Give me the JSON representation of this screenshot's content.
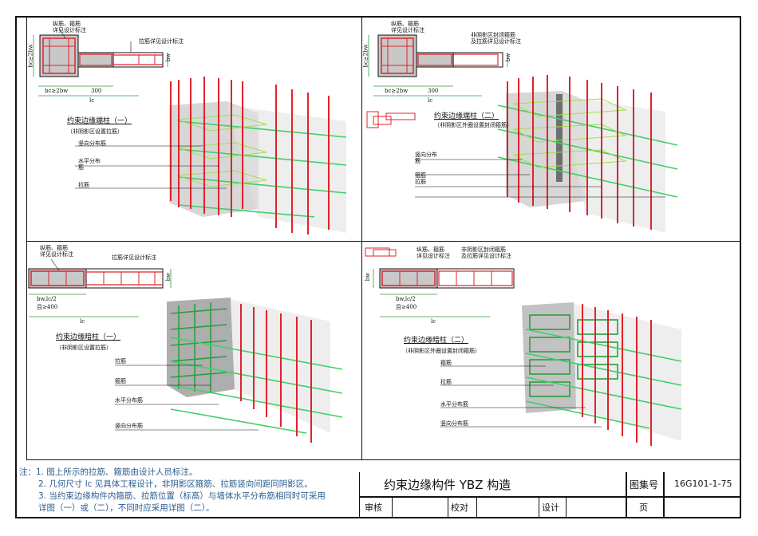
{
  "panels": {
    "top_left": {
      "labels": {
        "stirrup_note": "纵筋、箍筋\n详见设计标注",
        "tie_note": "拉筋详见设计标注",
        "bc": "bc≥2bw",
        "bw": "bw",
        "bc_dim": "bc≥2bw",
        "d300": "300",
        "lc": "lc"
      },
      "title": "约束边缘端柱（一）",
      "subtitle": "（非阴影区设置拉筋）",
      "callouts": [
        "竖向分布筋",
        "水平分布\n筋",
        "拉筋"
      ]
    },
    "top_right": {
      "labels": {
        "stirrup_note": "纵筋、箍筋\n详见设计标注",
        "tie_note": "非阴影区封闭箍筋\n及拉筋详见设计标注",
        "bc": "bc≥2bw",
        "bw": "bw",
        "bc_dim": "bc≥2bw",
        "d300": "300",
        "lc": "lc"
      },
      "title": "约束边缘端柱（二）",
      "subtitle": "（非阴影区外圈设置封闭箍筋）",
      "callouts": [
        "竖向分布\n筋",
        "箍筋\n拉筋"
      ]
    },
    "bottom_left": {
      "labels": {
        "stirrup_note": "纵筋、箍筋\n详见设计标注",
        "tie_note": "拉筋详见设计标注",
        "bw": "bw",
        "dim1": "bw,lc/2",
        "dim2": "且≥400",
        "lc": "lc"
      },
      "title": "约束边缘暗柱（一）",
      "subtitle": "（非阴影区设置拉筋）",
      "callouts": [
        "拉筋",
        "箍筋",
        "水平分布筋",
        "竖向分布筋"
      ]
    },
    "bottom_right": {
      "labels": {
        "stirrup_note": "纵筋、箍筋\n详见设计标注",
        "tie_note": "非阴影区封闭箍筋\n及拉筋详见设计标注",
        "bw": "bw",
        "dim1": "bw,lc/2",
        "dim2": "且≥400",
        "lc": "lc"
      },
      "title": "约束边缘暗柱（二）",
      "subtitle": "（非阴影区外圈设置封闭箍筋）",
      "callouts": [
        "箍筋",
        "拉筋",
        "水平分布筋",
        "竖向分布筋"
      ]
    }
  },
  "notes": [
    "注：1. 图上所示的拉筋、箍筋由设计人员标注。",
    "2. 几何尺寸 lc 见具体工程设计，非阴影区箍筋、拉筋竖向间距同阴影区。",
    "3. 当约束边缘构件内箍筋、拉筋位置（标高）与墙体水平分布筋相同时可采用",
    "详图（一）或（二），不同时应采用详图（二）。"
  ],
  "title_block": {
    "drawing_title": "约束边缘构件 YBZ 构造",
    "atlas_label": "图集号",
    "atlas_no": "16G101-1-75",
    "review": "审核",
    "check": "校对",
    "design": "设计",
    "page": "页"
  },
  "colors": {
    "rebar_red": "#e0232a",
    "rebar_green": "#3fd06a",
    "stirrup_green": "#2a9e3c",
    "concrete": "#c8c8c8",
    "note_blue": "#2a5d8f"
  }
}
